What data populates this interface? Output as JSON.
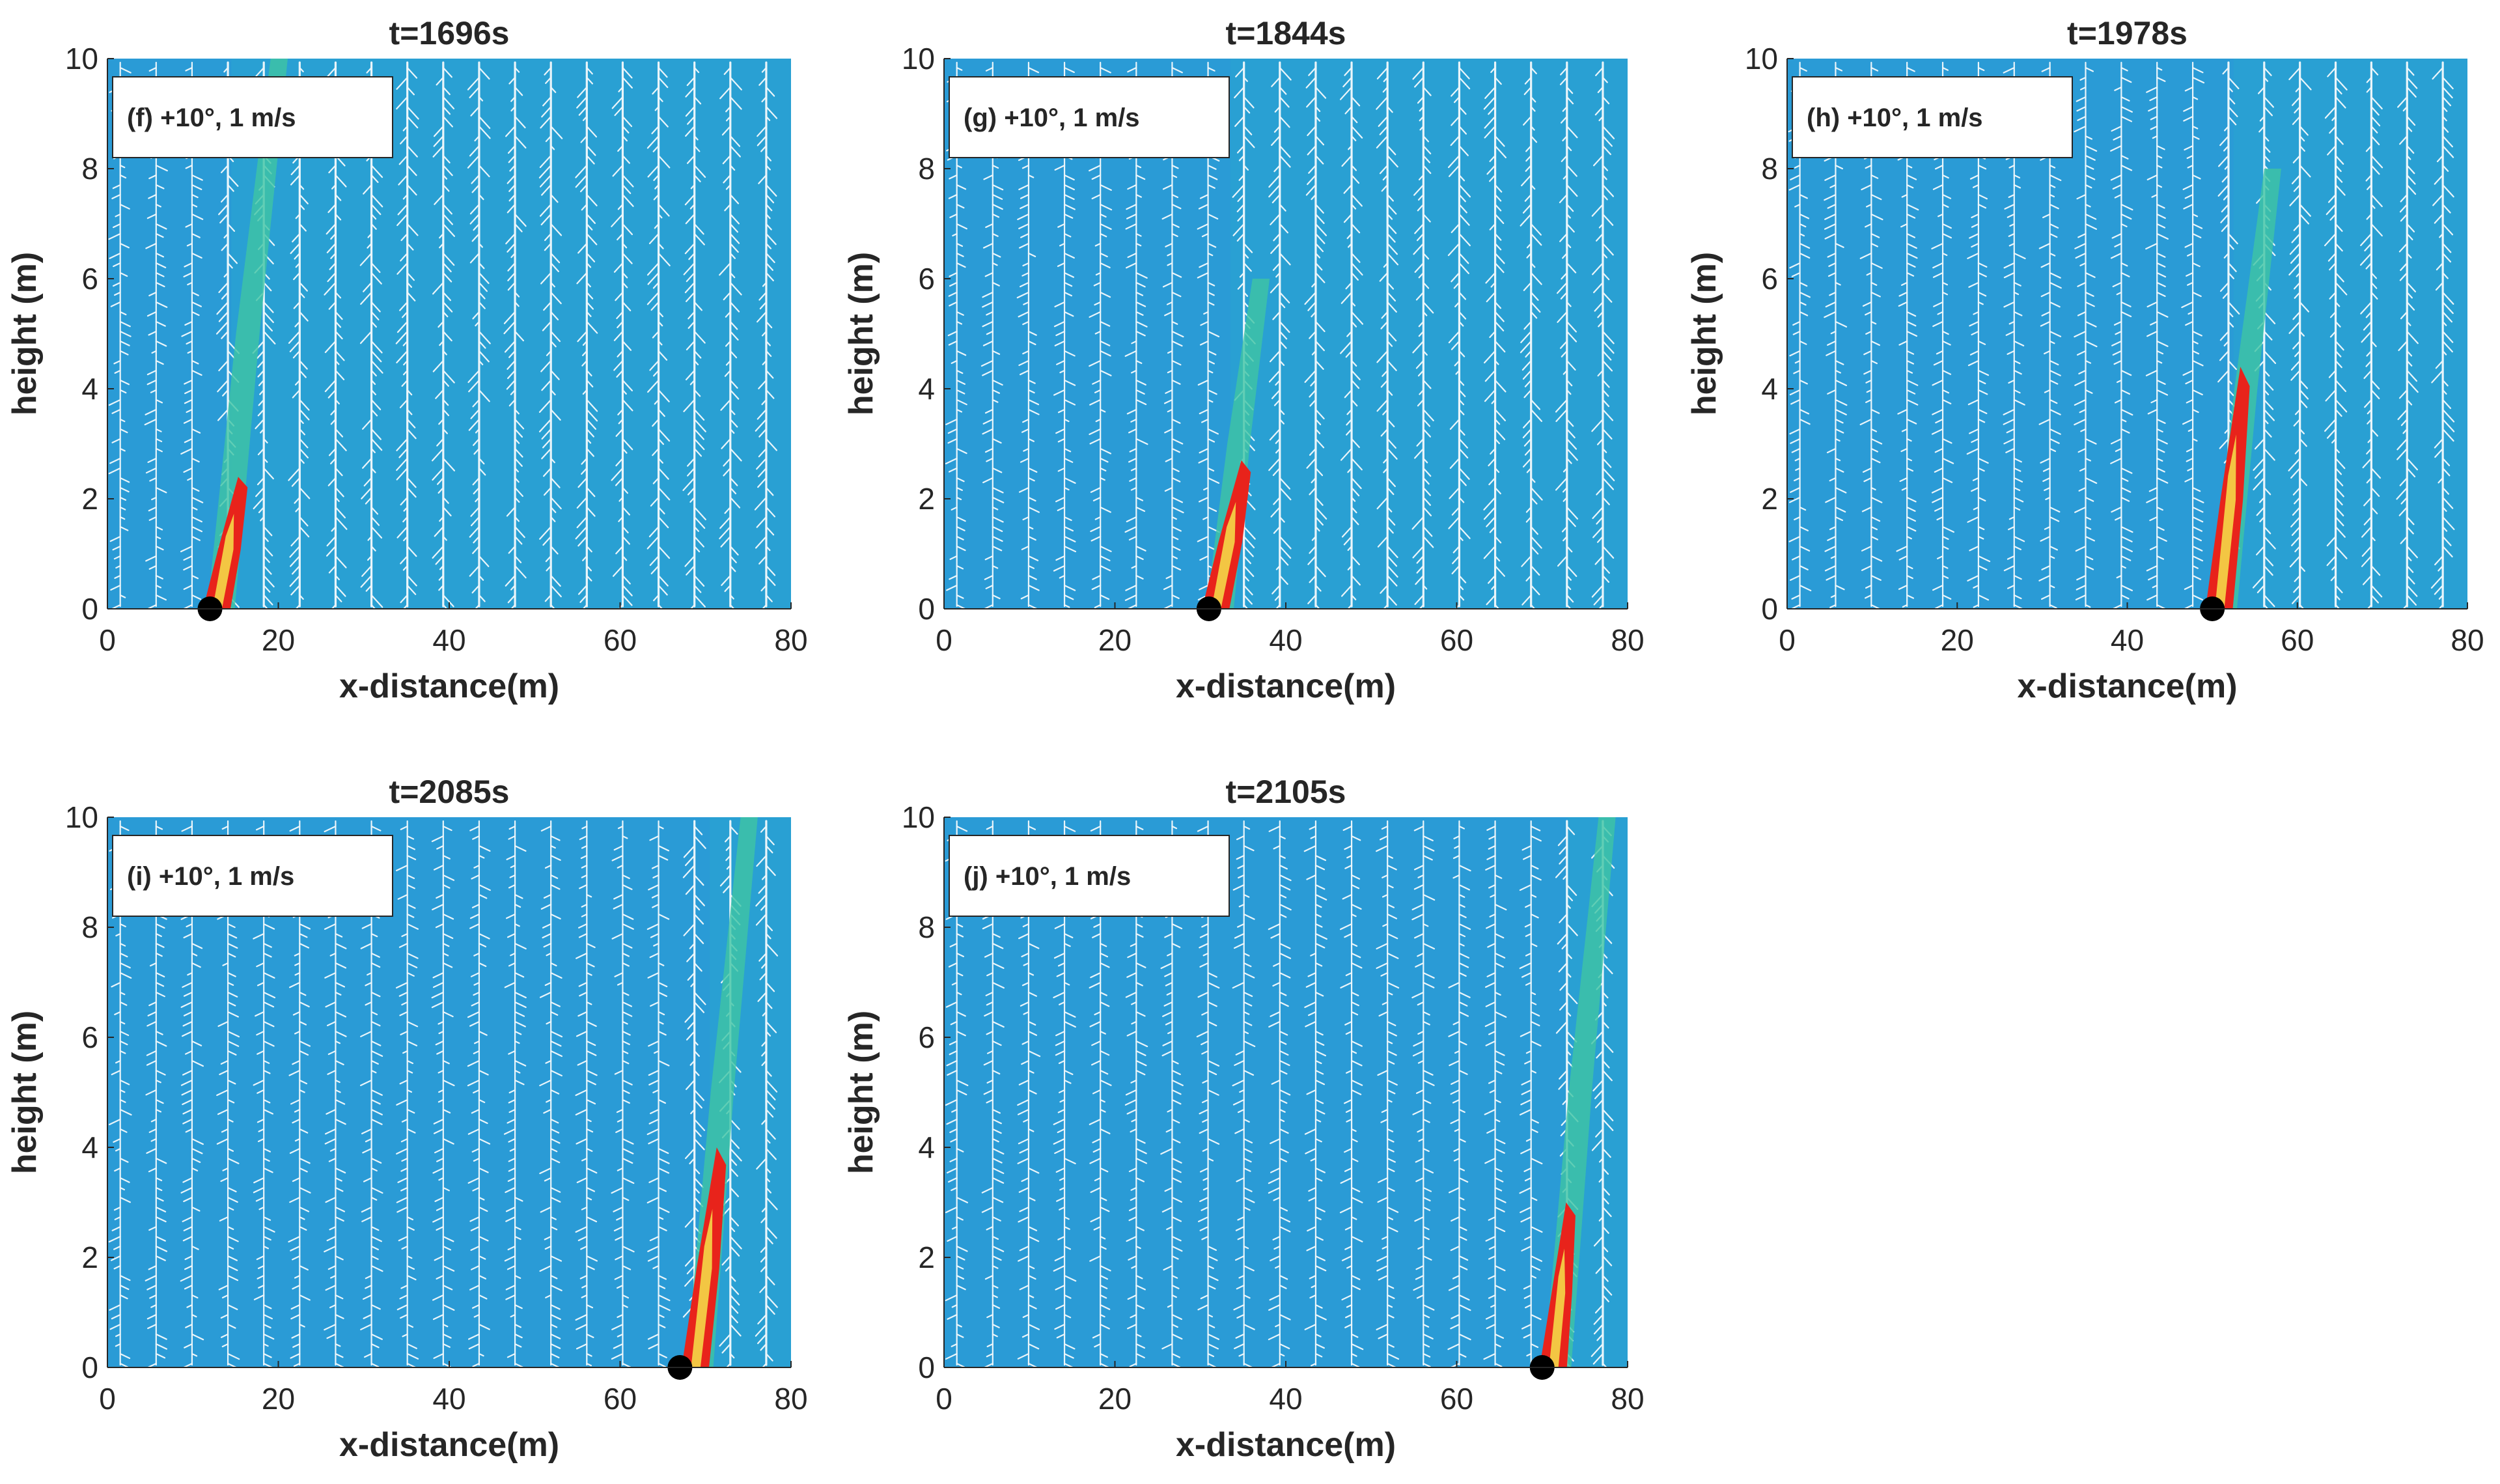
{
  "figure": {
    "panel_count": 5,
    "colors": {
      "background_field": "#2a9bd6",
      "field_alt": "#28a4d2",
      "vectors": "#ffffff",
      "fire_core": "#e8231b",
      "fire_mid": "#f4e34a",
      "fire_outer": "#3fc4a4",
      "source_marker": "#000000",
      "axis_text": "#262626"
    }
  },
  "chart_data": [
    {
      "type": "heatmap",
      "title": "t=1696s",
      "legend": "(f) +10°, 1 m/s",
      "xlabel": "x-distance(m)",
      "ylabel": "height (m)",
      "xlim": [
        0,
        80
      ],
      "ylim": [
        0,
        10
      ],
      "xticks": [
        "0",
        "20",
        "40",
        "60",
        "80"
      ],
      "yticks": [
        "0",
        "2",
        "4",
        "6",
        "8",
        "10"
      ],
      "source_x": 12,
      "fire_base_x": 12.5,
      "flame_height": 2.4,
      "flame_tilt": 3,
      "plume_height": 10,
      "plume_tilt": 7
    },
    {
      "type": "heatmap",
      "title": "t=1844s",
      "legend": "(g) +10°, 1 m/s",
      "xlabel": "x-distance(m)",
      "ylabel": "height (m)",
      "xlim": [
        0,
        80
      ],
      "ylim": [
        0,
        10
      ],
      "xticks": [
        "0",
        "20",
        "40",
        "60",
        "80"
      ],
      "yticks": [
        "0",
        "2",
        "4",
        "6",
        "8",
        "10"
      ],
      "source_x": 31,
      "fire_base_x": 31.5,
      "flame_height": 2.7,
      "flame_tilt": 3.5,
      "plume_height": 6,
      "plume_tilt": 5
    },
    {
      "type": "heatmap",
      "title": "t=1978s",
      "legend": "(h) +10°, 1 m/s",
      "xlabel": "x-distance(m)",
      "ylabel": "height (m)",
      "xlim": [
        0,
        80
      ],
      "ylim": [
        0,
        10
      ],
      "xticks": [
        "0",
        "20",
        "40",
        "60",
        "80"
      ],
      "yticks": [
        "0",
        "2",
        "4",
        "6",
        "8",
        "10"
      ],
      "source_x": 50,
      "fire_base_x": 50.5,
      "flame_height": 4.4,
      "flame_tilt": 3,
      "plume_height": 8,
      "plume_tilt": 6
    },
    {
      "type": "heatmap",
      "title": "t=2085s",
      "legend": "(i) +10°, 1 m/s",
      "xlabel": "x-distance(m)",
      "ylabel": "height (m)",
      "xlim": [
        0,
        80
      ],
      "ylim": [
        0,
        10
      ],
      "xticks": [
        "0",
        "20",
        "40",
        "60",
        "80"
      ],
      "yticks": [
        "0",
        "2",
        "4",
        "6",
        "8",
        "10"
      ],
      "source_x": 67,
      "fire_base_x": 68.5,
      "flame_height": 4,
      "flame_tilt": 3,
      "plume_height": 10,
      "plume_tilt": 6
    },
    {
      "type": "heatmap",
      "title": "t=2105s",
      "legend": "(j) +10°, 1 m/s",
      "xlabel": "x-distance(m)",
      "ylabel": "height (m)",
      "xlim": [
        0,
        80
      ],
      "ylim": [
        0,
        10
      ],
      "xticks": [
        "0",
        "20",
        "40",
        "60",
        "80"
      ],
      "yticks": [
        "0",
        "2",
        "4",
        "6",
        "8",
        "10"
      ],
      "source_x": 70,
      "fire_base_x": 71,
      "flame_height": 3,
      "flame_tilt": 2,
      "plume_height": 10,
      "plume_tilt": 6
    }
  ]
}
